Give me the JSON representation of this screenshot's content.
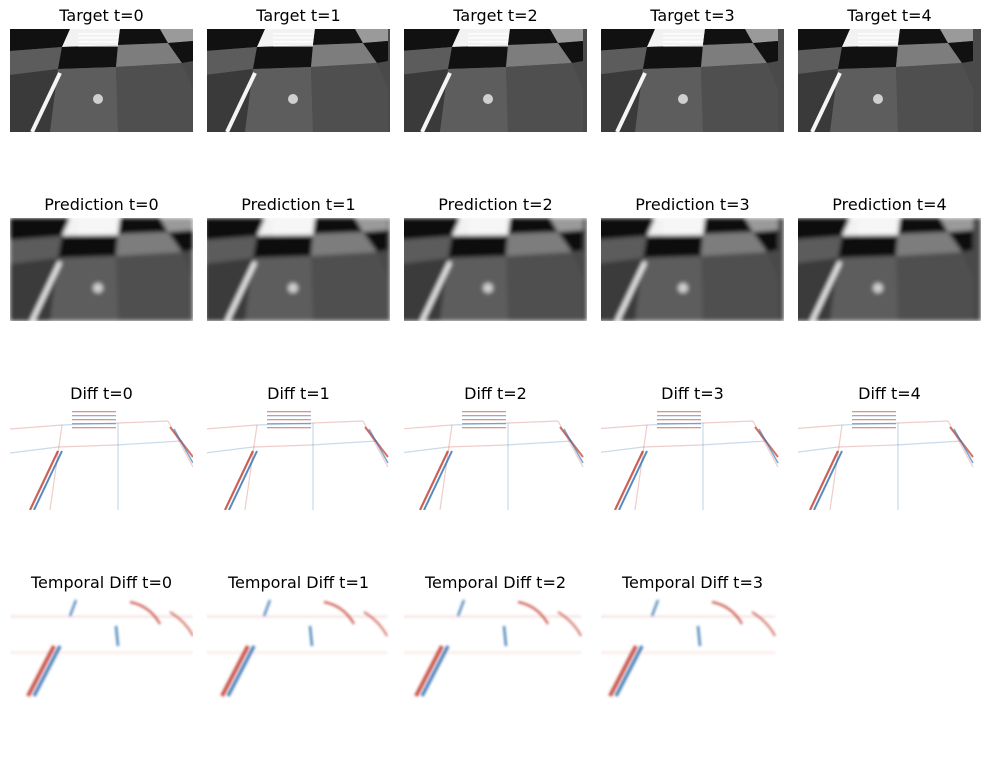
{
  "figure": {
    "rows": [
      {
        "kind": "gray",
        "blur": 0,
        "titles": [
          "Target t=0",
          "Target t=1",
          "Target t=2",
          "Target t=3",
          "Target t=4"
        ]
      },
      {
        "kind": "gray",
        "blur": 2.2,
        "titles": [
          "Prediction t=0",
          "Prediction t=1",
          "Prediction t=2",
          "Prediction t=3",
          "Prediction t=4"
        ]
      },
      {
        "kind": "diff",
        "titles": [
          "Diff t=0",
          "Diff t=1",
          "Diff t=2",
          "Diff t=3",
          "Diff t=4"
        ]
      },
      {
        "kind": "temporal",
        "titles": [
          "Temporal Diff t=0",
          "Temporal Diff t=1",
          "Temporal Diff t=2",
          "Temporal Diff t=3"
        ]
      }
    ],
    "colormap": {
      "gray_dark": "#111111",
      "gray_mid": "#4a4a4a",
      "gray_light": "#f2f2f2",
      "diverging_red": "#c0392b",
      "diverging_blue": "#2c6fb0",
      "diverging_white": "#ffffff"
    }
  }
}
